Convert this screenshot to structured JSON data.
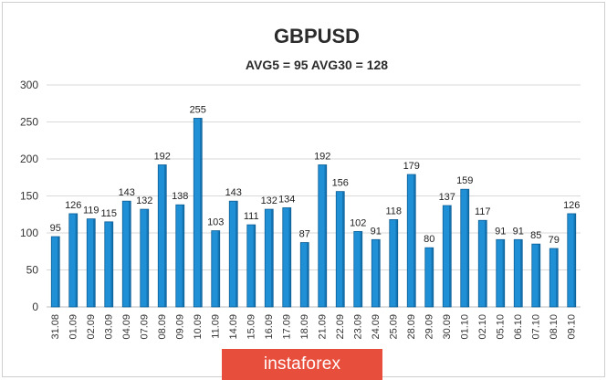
{
  "chart_data": {
    "type": "bar",
    "title": "GBPUSD",
    "subtitle": "AVG5 = 95 AVG30 = 128",
    "categories": [
      "31.08",
      "01.09",
      "02.09",
      "03.09",
      "04.09",
      "07.09",
      "08.09",
      "09.09",
      "10.09",
      "11.09",
      "14.09",
      "15.09",
      "16.09",
      "17.09",
      "18.09",
      "21.09",
      "22.09",
      "23.09",
      "24.09",
      "25.09",
      "28.09",
      "29.09",
      "30.09",
      "01.10",
      "02.10",
      "05.10",
      "06.10",
      "07.10",
      "08.10",
      "09.10"
    ],
    "values": [
      95,
      126,
      119,
      115,
      143,
      132,
      192,
      138,
      255,
      103,
      143,
      111,
      132,
      134,
      87,
      192,
      156,
      102,
      91,
      118,
      179,
      80,
      137,
      159,
      117,
      91,
      91,
      85,
      79,
      126
    ],
    "ylim": [
      0,
      300
    ],
    "yticks": [
      0,
      50,
      100,
      150,
      200,
      250,
      300
    ],
    "grid": true,
    "bar_color": "#1f8fd6",
    "bar_edge_color": "#0d5f96"
  },
  "watermark": {
    "text": "instaforex",
    "color": "#e84e3c"
  }
}
